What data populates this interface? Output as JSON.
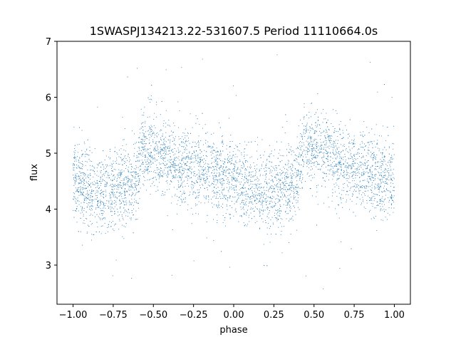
{
  "chart_data": {
    "type": "scatter",
    "title": "1SWASPJ134213.22-531607.5 Period 11110664.0s",
    "xlabel": "phase",
    "ylabel": "flux",
    "xlim": [
      -1.1,
      1.1
    ],
    "ylim": [
      2.3,
      7.0
    ],
    "x_ticks": [
      -1.0,
      -0.75,
      -0.5,
      -0.25,
      0.0,
      0.25,
      0.5,
      0.75,
      1.0
    ],
    "x_tick_labels": [
      "−1.00",
      "−0.75",
      "−0.50",
      "−0.25",
      "0.00",
      "0.25",
      "0.50",
      "0.75",
      "1.00"
    ],
    "y_ticks": [
      3,
      4,
      5,
      6,
      7
    ],
    "y_tick_labels": [
      "3",
      "4",
      "5",
      "6",
      "7"
    ],
    "grid": false,
    "marker_color": "#1f77b4",
    "series": [
      {
        "x_range": [
          -1.0,
          1.0
        ],
        "profile_phase": [
          0.0,
          0.1,
          0.2,
          0.3,
          0.4,
          0.43,
          0.5,
          0.6,
          0.7,
          0.8,
          0.9,
          1.0
        ],
        "profile_flux": [
          4.5,
          4.35,
          4.3,
          4.4,
          4.55,
          5.1,
          5.05,
          4.9,
          4.75,
          4.7,
          4.6,
          4.5
        ],
        "typical_spread": 0.35,
        "outlier_range": [
          2.5,
          6.8
        ]
      }
    ]
  }
}
